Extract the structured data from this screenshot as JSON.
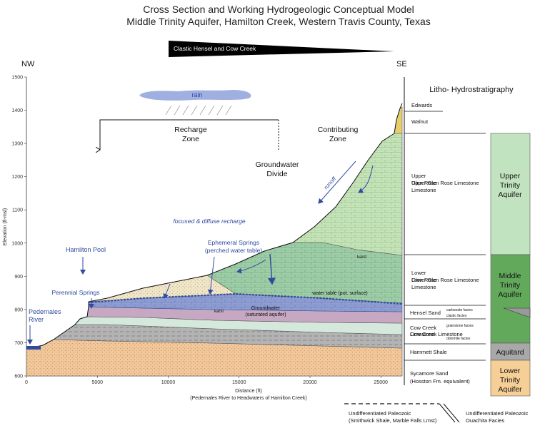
{
  "title_line1": "Cross Section and Working Hydrogeologic Conceptual Model",
  "title_line2": "Middle Trinity Aquifer,  Hamilton Creek, Western Travis County, Texas",
  "wedge_label": "Clastic Hensel and Cow Creek",
  "compass": {
    "nw": "NW",
    "se": "SE"
  },
  "axes": {
    "ylabel": "Elevation (ft-msl)",
    "xlabel": "Distance (ft)",
    "xlabel_sub": "(Pedernales River to Headwaters of Hamilton Creek)",
    "y_ticks": [
      "600",
      "700",
      "800",
      "900",
      "1000",
      "1100",
      "1200",
      "1300",
      "1400",
      "1500"
    ],
    "x_ticks": [
      "0",
      "5000",
      "10000",
      "15000",
      "20000",
      "25000"
    ],
    "y_range": [
      600,
      1500
    ],
    "x_range": [
      0,
      26500
    ]
  },
  "annotations": {
    "rain": "rain",
    "recharge_zone": [
      "Recharge",
      "Zone"
    ],
    "contributing_zone": [
      "Contributing",
      "Zone"
    ],
    "groundwater_divide": [
      "Groundwater",
      "Divide"
    ],
    "runoff": "runoff",
    "focused_recharge": "focused & diffuse recharge",
    "hamilton_pool": "Hamilton Pool",
    "ephemeral_springs": [
      "Ephemeral Springs",
      "(perched water table)"
    ],
    "perennial_springs": "Perennial Springs",
    "pedernales": [
      "Pedernales",
      "River"
    ],
    "water_table": "water table (pot. surface)",
    "groundwater": [
      "Groundwater",
      "(saturated aquifer)"
    ],
    "karst": "karst"
  },
  "litho": {
    "heading": "Litho- Hydrostratigraphy",
    "units": [
      {
        "name": "Edwards"
      },
      {
        "name": "Walnut"
      },
      {
        "name": "Upper Glen Rose Limestone"
      },
      {
        "name": "Lower Glen Rose Limestone"
      },
      {
        "name": "Hensel Sand"
      },
      {
        "name": "Cow Creek Limestone"
      },
      {
        "name": "Hammett Shale"
      },
      {
        "name": "Sycamore Sand",
        "sub": "(Hosston Fm. equivalent)"
      }
    ],
    "facies": [
      "carbonate facies",
      "clastic facies",
      "grainstone facies",
      "dolomite facies"
    ],
    "hydro_units": [
      {
        "lines": [
          "Upper",
          "Trinity",
          "Aquifer"
        ],
        "color": "#c2e3bf"
      },
      {
        "lines": [
          "Middle",
          "Trinity",
          "Aquifer"
        ],
        "color": "#63a95c"
      },
      {
        "lines": [
          "Aquitard"
        ],
        "color": "#a8a8a8"
      },
      {
        "lines": [
          "Lower",
          "Trinity",
          "Aquifer"
        ],
        "color": "#f5cf96"
      }
    ]
  },
  "footer": {
    "left": [
      "Undifferentiated Paleozoic",
      "(Smithwick Shale, Marble Falls Lmst)"
    ],
    "right": [
      "Undifferentiated Paleozoic",
      "Ouachita Facies"
    ]
  },
  "colors": {
    "sycamore": "#f2c79a",
    "hammett": "#b3b3b3",
    "cow_creek": "#d4e8dc",
    "hensel": "#c7a8c3",
    "lower_glen_rose": "#9ecfa8",
    "upper_glen_rose": "#c5e5b8",
    "walnut": "#e6cf6a",
    "saturated": "#8f9fd3",
    "unsat": "#f2e6c9",
    "water_blue": "#2f4aa0"
  }
}
